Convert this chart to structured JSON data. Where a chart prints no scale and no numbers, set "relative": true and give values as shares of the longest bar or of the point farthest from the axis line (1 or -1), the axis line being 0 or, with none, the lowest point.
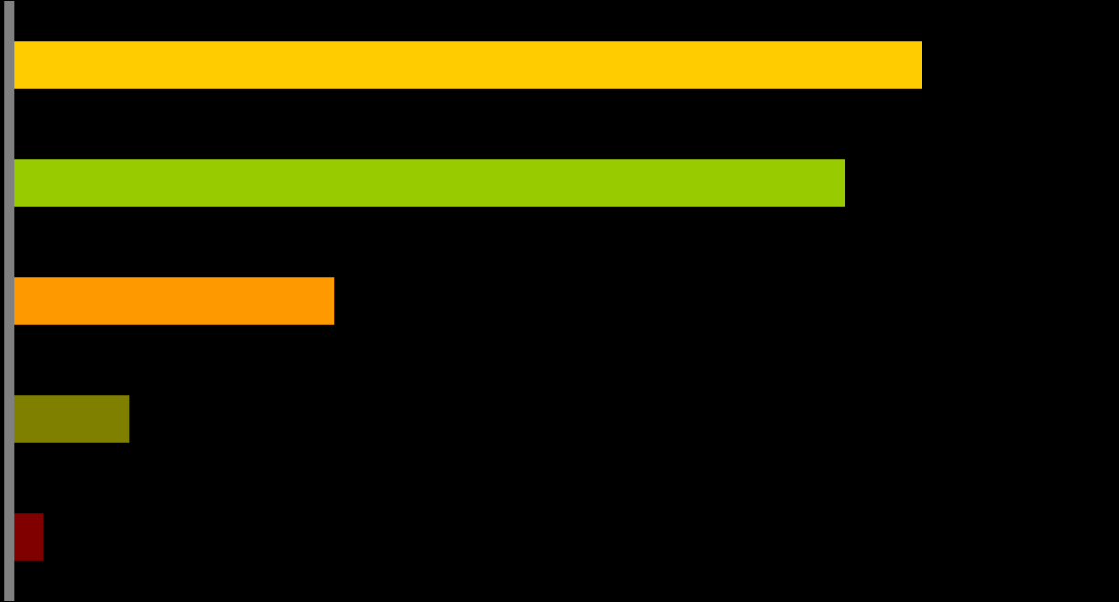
{
  "chart_data": {
    "type": "bar",
    "orientation": "horizontal",
    "relative": true,
    "categories": [
      null,
      null,
      null,
      null,
      null
    ],
    "values": [
      1,
      0.916,
      0.357,
      0.133,
      0.039
    ],
    "colors": [
      "#ffcc00",
      "#99cc00",
      "#ff9900",
      "#808000",
      "#800000"
    ]
  }
}
